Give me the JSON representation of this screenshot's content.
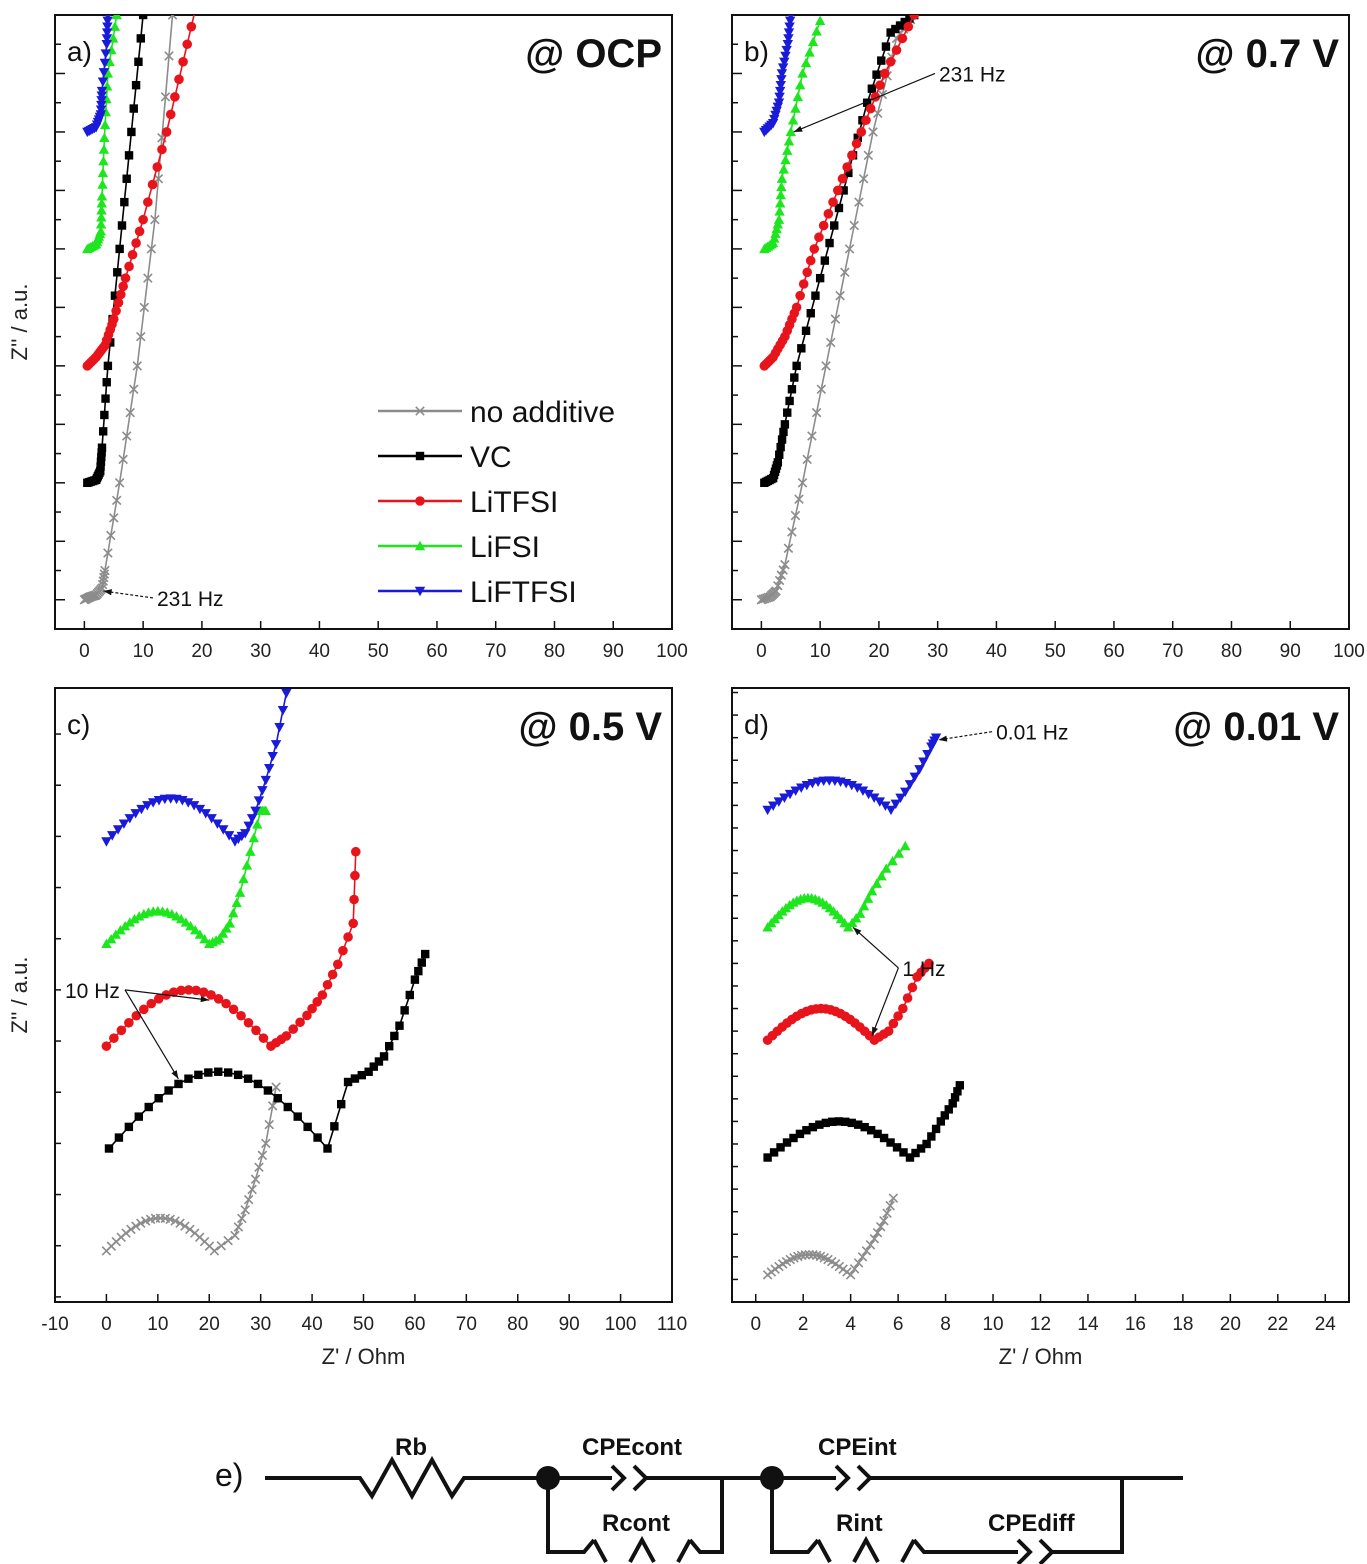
{
  "colors": {
    "no_additive": "#8c8c8c",
    "VC": "#000000",
    "LiTFSI": "#e8141c",
    "LiFSI": "#1ee61e",
    "LiFTFSI": "#1a1ad9"
  },
  "legend": [
    "no additive",
    "VC",
    "LiTFSI",
    "LiFSI",
    "LiFTFSI"
  ],
  "chart_data": [
    {
      "type": "scatter",
      "panel_label": "a)",
      "title": "@ OCP",
      "xlabel": "",
      "ylabel": "Z'' / a.u.",
      "xlim": [
        -5,
        100
      ],
      "xticks": [
        0,
        10,
        20,
        30,
        40,
        50,
        60,
        70,
        80,
        90,
        100
      ],
      "yaxis": "arbitrary offset units, no tick labels",
      "y_offsets": {
        "no_additive": 0,
        "VC": 2,
        "LiTFSI": 4,
        "LiFSI": 6,
        "LiFTFSI": 8
      },
      "series": [
        {
          "name": "no additive",
          "kind": "line",
          "points": [
            [
              0,
              0
            ],
            [
              1,
              0.05
            ],
            [
              2,
              0.08
            ],
            [
              3,
              0.2
            ],
            [
              3.5,
              0.5
            ],
            [
              6,
              2
            ],
            [
              9,
              4
            ],
            [
              12,
              6.5
            ],
            [
              15,
              10
            ]
          ]
        },
        {
          "name": "VC",
          "kind": "line",
          "points": [
            [
              0.5,
              0
            ],
            [
              2,
              0.05
            ],
            [
              2.7,
              0.2
            ],
            [
              3,
              0.6
            ],
            [
              4,
              2
            ],
            [
              6,
              4
            ],
            [
              8,
              6
            ],
            [
              10,
              8
            ]
          ]
        },
        {
          "name": "LiTFSI",
          "kind": "line",
          "points": [
            [
              0.5,
              0
            ],
            [
              2,
              0.15
            ],
            [
              3.5,
              0.35
            ],
            [
              5,
              0.8
            ],
            [
              7,
              1.5
            ],
            [
              10,
              2.5
            ],
            [
              14,
              4
            ],
            [
              17.5,
              5.5
            ],
            [
              21,
              7
            ]
          ]
        },
        {
          "name": "LiFSI",
          "kind": "line",
          "points": [
            [
              0.5,
              0
            ],
            [
              2,
              0.08
            ],
            [
              2.8,
              0.3
            ],
            [
              3,
              0.9
            ],
            [
              3.4,
              1.9
            ],
            [
              4,
              3
            ],
            [
              5.5,
              4
            ]
          ]
        },
        {
          "name": "LiFTFSI",
          "kind": "line",
          "points": [
            [
              0.5,
              0
            ],
            [
              2,
              0.08
            ],
            [
              2.8,
              0.3
            ],
            [
              3,
              0.7
            ],
            [
              3.8,
              1.5
            ],
            [
              4,
              2
            ]
          ]
        }
      ],
      "annotations": [
        {
          "text": "231 Hz",
          "at_series": "no additive",
          "point": [
            3,
            0.1
          ]
        }
      ]
    },
    {
      "type": "scatter",
      "panel_label": "b)",
      "title": "@ 0.7 V",
      "xlabel": "",
      "ylabel": "",
      "xlim": [
        -5,
        100
      ],
      "xticks": [
        0,
        10,
        20,
        30,
        40,
        50,
        60,
        70,
        80,
        90,
        100
      ],
      "yaxis": "arbitrary offset units, no tick labels",
      "y_offsets": {
        "no_additive": 0,
        "VC": 2,
        "LiTFSI": 4,
        "LiFSI": 6,
        "LiFTFSI": 8
      },
      "series": [
        {
          "name": "no additive",
          "kind": "line",
          "points": [
            [
              0,
              0
            ],
            [
              1.5,
              0.05
            ],
            [
              2.5,
              0.15
            ],
            [
              4,
              0.6
            ],
            [
              7,
              2
            ],
            [
              11,
              4
            ],
            [
              15,
              6
            ],
            [
              19,
              8
            ],
            [
              23,
              9.6
            ],
            [
              26,
              10
            ]
          ]
        },
        {
          "name": "VC",
          "kind": "line",
          "points": [
            [
              0.5,
              0
            ],
            [
              2,
              0.08
            ],
            [
              2.8,
              0.35
            ],
            [
              4,
              1
            ],
            [
              6,
              2
            ],
            [
              10,
              3.5
            ],
            [
              14,
              5
            ],
            [
              18,
              6.5
            ],
            [
              22,
              7.7
            ],
            [
              26,
              8
            ]
          ]
        },
        {
          "name": "LiTFSI",
          "kind": "line",
          "points": [
            [
              0.5,
              0
            ],
            [
              2,
              0.15
            ],
            [
              4,
              0.5
            ],
            [
              6,
              1
            ],
            [
              9,
              2
            ],
            [
              13,
              3
            ],
            [
              17,
              4
            ],
            [
              21,
              5
            ],
            [
              26,
              6
            ]
          ]
        },
        {
          "name": "LiFSI",
          "kind": "line",
          "points": [
            [
              0.5,
              0
            ],
            [
              2,
              0.1
            ],
            [
              3,
              0.5
            ],
            [
              3.5,
              1.2
            ],
            [
              5,
              2
            ],
            [
              7,
              3
            ],
            [
              10,
              3.9
            ]
          ]
        },
        {
          "name": "LiFTFSI",
          "kind": "line",
          "points": [
            [
              0.5,
              0
            ],
            [
              2,
              0.15
            ],
            [
              3,
              0.5
            ],
            [
              3.5,
              1
            ],
            [
              4.5,
              1.5
            ],
            [
              5,
              2
            ]
          ]
        }
      ],
      "annotations": [
        {
          "text": "231 Hz",
          "at_series": "LiFSI",
          "point": [
            3,
            6.2
          ]
        }
      ]
    },
    {
      "type": "scatter",
      "panel_label": "c)",
      "title": "@ 0.5 V",
      "xlabel": "Z' / Ohm",
      "ylabel": "Z'' / a.u.",
      "xlim": [
        -10,
        110
      ],
      "xticks": [
        -10,
        0,
        10,
        20,
        30,
        40,
        50,
        60,
        70,
        80,
        90,
        100,
        110
      ],
      "yaxis": "arbitrary offset units, no tick labels",
      "y_offsets": {
        "no_additive": 0,
        "VC": 10,
        "LiTFSI": 20,
        "LiFSI": 30,
        "LiFTFSI": 40
      },
      "series": [
        {
          "name": "no additive",
          "kind": "arc",
          "start": 0,
          "min": 21,
          "arc_height": 3.2,
          "tail": [
            [
              25,
              1.5
            ],
            [
              27,
              4
            ],
            [
              29,
              7
            ],
            [
              31,
              10.5
            ],
            [
              33,
              16
            ]
          ]
        },
        {
          "name": "VC",
          "kind": "arc",
          "start": 0.5,
          "min": 43,
          "arc_height": 7.5,
          "tail": [
            [
              47,
              6.5
            ],
            [
              51,
              7.5
            ],
            [
              54,
              9
            ],
            [
              57,
              12
            ],
            [
              60,
              16.5
            ],
            [
              62,
              19
            ]
          ]
        },
        {
          "name": "LiTFSI",
          "kind": "arc",
          "start": 0,
          "min": 32,
          "arc_height": 5.5,
          "tail": [
            [
              35,
              1
            ],
            [
              39,
              3
            ],
            [
              42,
              5
            ],
            [
              45,
              8
            ],
            [
              48,
              12
            ],
            [
              48.5,
              19
            ]
          ]
        },
        {
          "name": "LiFSI",
          "kind": "arc",
          "start": 0,
          "min": 20,
          "arc_height": 3.2,
          "tail": [
            [
              22,
              0.5
            ],
            [
              24,
              2
            ],
            [
              26,
              5
            ],
            [
              28,
              9
            ],
            [
              30,
              13
            ],
            [
              31,
              13
            ]
          ]
        },
        {
          "name": "LiFTFSI",
          "kind": "arc",
          "start": 0,
          "min": 25,
          "arc_height": 4.2,
          "tail": [
            [
              27,
              0.8
            ],
            [
              29,
              3
            ],
            [
              31,
              6
            ],
            [
              33,
              9.5
            ],
            [
              35,
              14.5
            ]
          ]
        }
      ],
      "annotations": [
        {
          "text": "10 Hz",
          "at_series": [
            "LiTFSI",
            "VC"
          ],
          "point": [
            15,
            25.5
          ]
        }
      ]
    },
    {
      "type": "scatter",
      "panel_label": "d)",
      "title": "@ 0.01 V",
      "xlabel": "Z' / Ohm",
      "ylabel": "",
      "xlim": [
        -1,
        25
      ],
      "xticks": [
        0,
        2,
        4,
        6,
        8,
        10,
        12,
        14,
        16,
        18,
        20,
        22,
        24
      ],
      "yaxis": "arbitrary offset units, no tick labels",
      "y_offsets": {
        "no_additive": 0,
        "VC": 2.6,
        "LiTFSI": 5.2,
        "LiFSI": 7.7,
        "LiFTFSI": 10.3
      },
      "series": [
        {
          "name": "no additive",
          "kind": "arc",
          "start": 0.5,
          "min": 4,
          "arc_height": 0.45,
          "tail": [
            [
              4.5,
              0.4
            ],
            [
              5,
              0.8
            ],
            [
              5.4,
              1.2
            ],
            [
              5.8,
              1.7
            ]
          ]
        },
        {
          "name": "VC",
          "kind": "arc",
          "start": 0.5,
          "min": 6.5,
          "arc_height": 0.8,
          "tail": [
            [
              7.2,
              0.3
            ],
            [
              7.8,
              0.8
            ],
            [
              8.3,
              1.2
            ],
            [
              8.6,
              1.6
            ]
          ]
        },
        {
          "name": "LiTFSI",
          "kind": "arc",
          "start": 0.5,
          "min": 5,
          "arc_height": 0.7,
          "tail": [
            [
              5.6,
              0.2
            ],
            [
              6.2,
              0.7
            ],
            [
              6.8,
              1.4
            ],
            [
              7.3,
              1.7
            ]
          ]
        },
        {
          "name": "LiFSI",
          "kind": "arc",
          "start": 0.5,
          "min": 3.9,
          "arc_height": 0.65,
          "tail": [
            [
              4.4,
              0.3
            ],
            [
              4.9,
              0.8
            ],
            [
              5.5,
              1.3
            ],
            [
              6.3,
              1.8
            ]
          ]
        },
        {
          "name": "LiFTFSI",
          "kind": "arc",
          "start": 0.5,
          "min": 5.7,
          "arc_height": 0.65,
          "tail": [
            [
              6.3,
              0.4
            ],
            [
              6.9,
              0.9
            ],
            [
              7.4,
              1.4
            ],
            [
              7.6,
              1.6
            ]
          ]
        }
      ],
      "annotations": [
        {
          "text": "0.01 Hz",
          "at_series": "LiFTFSI",
          "point": [
            7.6,
            11.9
          ]
        },
        {
          "text": "1 Hz",
          "at_series": [
            "LiFSI",
            "LiTFSI"
          ],
          "point": [
            5,
            6.8
          ]
        }
      ]
    }
  ],
  "circuit": {
    "label": "e)",
    "elements": [
      "Rb",
      "CPEcont",
      "Rcont",
      "CPEint",
      "Rint",
      "CPEdiff"
    ]
  }
}
